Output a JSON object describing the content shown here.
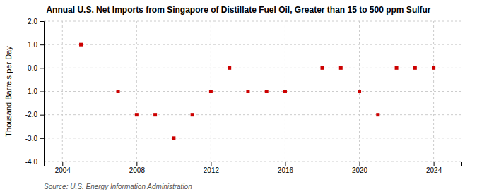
{
  "chart_data": {
    "type": "scatter",
    "title": "Annual U.S. Net Imports from Singapore of Distillate Fuel Oil, Greater than 15 to 500 ppm Sulfur",
    "ylabel": "Thousand Barrels per Day",
    "source": "Source: U.S. Energy Information Administration",
    "x": [
      2005,
      2007,
      2008,
      2009,
      2010,
      2011,
      2012,
      2013,
      2014,
      2015,
      2016,
      2018,
      2019,
      2020,
      2021,
      2022,
      2023,
      2024
    ],
    "values": [
      1.0,
      -1.0,
      -2.0,
      -2.0,
      -3.0,
      -2.0,
      -1.0,
      0.0,
      -1.0,
      -1.0,
      -1.0,
      0.0,
      0.0,
      -1.0,
      -2.0,
      0.0,
      0.0,
      0.0
    ],
    "color": "#cc0000",
    "marker": "square",
    "xlim": [
      2003.0,
      2025.5
    ],
    "xticks": [
      2004,
      2008,
      2012,
      2016,
      2020,
      2024
    ],
    "ylim": [
      -4.0,
      2.0
    ],
    "yticks": [
      {
        "value": -4.0,
        "label": "-4.0"
      },
      {
        "value": -3.0,
        "label": "-3.0"
      },
      {
        "value": -2.0,
        "label": "-2.0"
      },
      {
        "value": -1.0,
        "label": "-1.0"
      },
      {
        "value": 0.0,
        "label": "0.0"
      },
      {
        "value": 1.0,
        "label": "1.0"
      },
      {
        "value": 2.0,
        "label": "2.0"
      }
    ],
    "grid": true
  }
}
